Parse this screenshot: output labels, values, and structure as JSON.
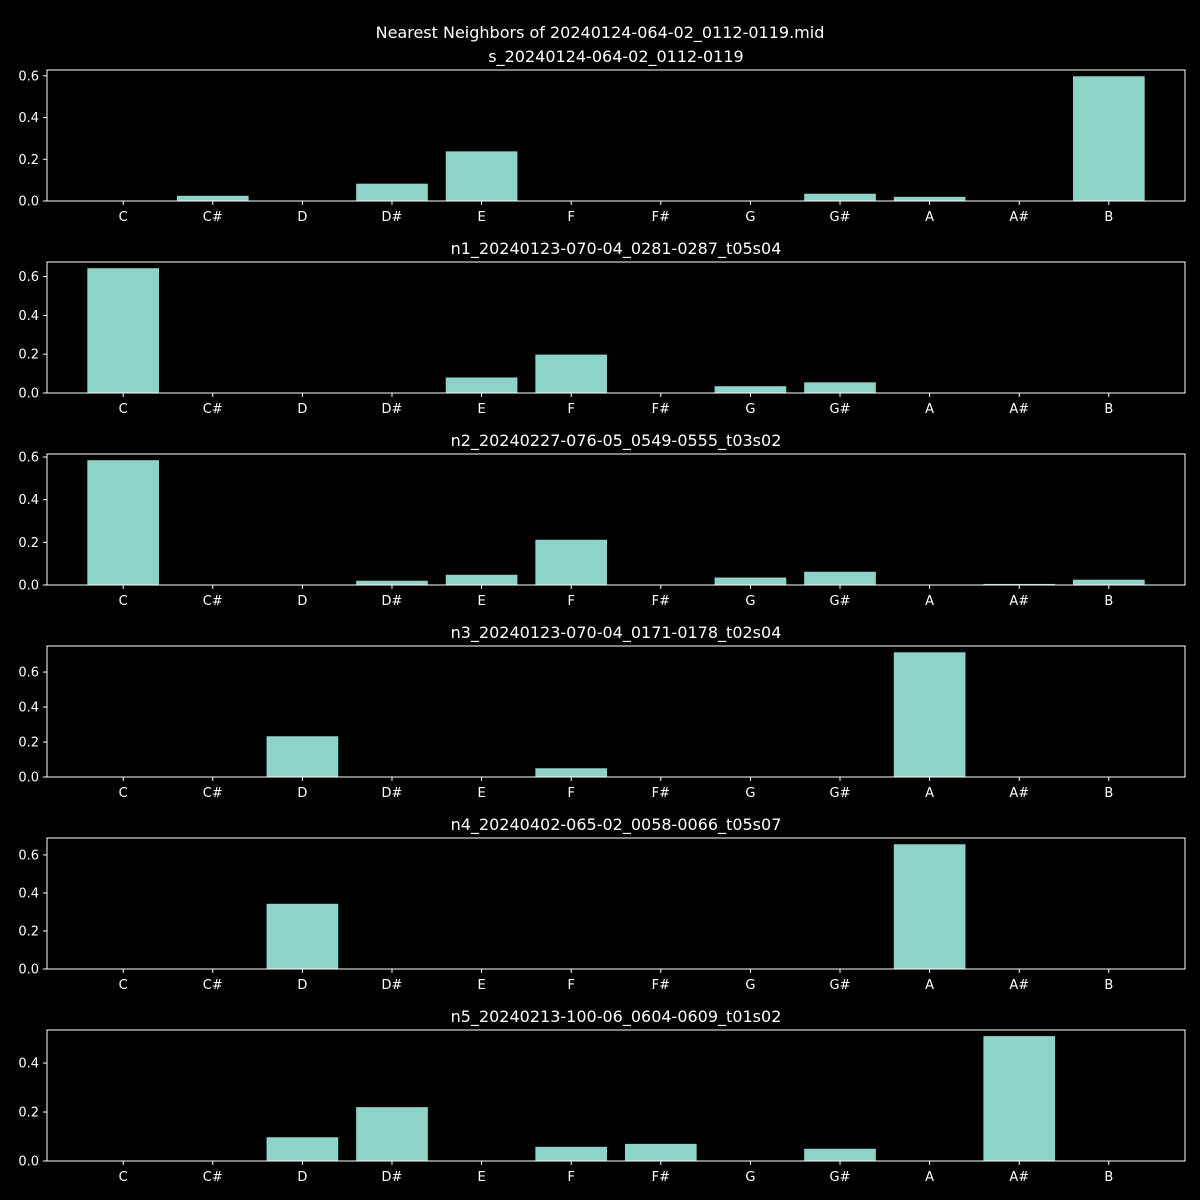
{
  "figure": {
    "suptitle": "Nearest Neighbors of 20240124-064-02_0112-0119.mid",
    "background": "#000000",
    "bar_color": "#8dd3c7",
    "text_color": "#ffffff"
  },
  "chart_data": [
    {
      "type": "bar",
      "title": "s_20240124-064-02_0112-0119",
      "categories": [
        "C",
        "C#",
        "D",
        "D#",
        "E",
        "F",
        "F#",
        "G",
        "G#",
        "A",
        "A#",
        "B"
      ],
      "values": [
        0,
        0.025,
        0,
        0.083,
        0.238,
        0,
        0,
        0,
        0.035,
        0.02,
        0,
        0.598
      ],
      "ylim": [
        0,
        0.628
      ],
      "yticks": [
        0.0,
        0.2,
        0.4,
        0.6
      ],
      "ytick_labels": [
        "0.0",
        "0.2",
        "0.4",
        "0.6"
      ]
    },
    {
      "type": "bar",
      "title": "n1_20240123-070-04_0281-0287_t05s04",
      "categories": [
        "C",
        "C#",
        "D",
        "D#",
        "E",
        "F",
        "F#",
        "G",
        "G#",
        "A",
        "A#",
        "B"
      ],
      "values": [
        0.643,
        0,
        0,
        0,
        0.08,
        0.198,
        0,
        0.035,
        0.055,
        0,
        0,
        0
      ],
      "ylim": [
        0,
        0.675
      ],
      "yticks": [
        0.0,
        0.2,
        0.4,
        0.6
      ],
      "ytick_labels": [
        "0.0",
        "0.2",
        "0.4",
        "0.6"
      ]
    },
    {
      "type": "bar",
      "title": "n2_20240227-076-05_0549-0555_t03s02",
      "categories": [
        "C",
        "C#",
        "D",
        "D#",
        "E",
        "F",
        "F#",
        "G",
        "G#",
        "A",
        "A#",
        "B"
      ],
      "values": [
        0.585,
        0,
        0,
        0.02,
        0.048,
        0.212,
        0,
        0.035,
        0.062,
        0,
        0.005,
        0.025
      ],
      "ylim": [
        0,
        0.614
      ],
      "yticks": [
        0.0,
        0.2,
        0.4,
        0.6
      ],
      "ytick_labels": [
        "0.0",
        "0.2",
        "0.4",
        "0.6"
      ]
    },
    {
      "type": "bar",
      "title": "n3_20240123-070-04_0171-0178_t02s04",
      "categories": [
        "C",
        "C#",
        "D",
        "D#",
        "E",
        "F",
        "F#",
        "G",
        "G#",
        "A",
        "A#",
        "B"
      ],
      "values": [
        0,
        0,
        0.233,
        0,
        0,
        0.05,
        0,
        0,
        0,
        0.713,
        0,
        0
      ],
      "ylim": [
        0,
        0.749
      ],
      "yticks": [
        0.0,
        0.2,
        0.4,
        0.6
      ],
      "ytick_labels": [
        "0.0",
        "0.2",
        "0.4",
        "0.6"
      ]
    },
    {
      "type": "bar",
      "title": "n4_20240402-065-02_0058-0066_t05s07",
      "categories": [
        "C",
        "C#",
        "D",
        "D#",
        "E",
        "F",
        "F#",
        "G",
        "G#",
        "A",
        "A#",
        "B"
      ],
      "values": [
        0,
        0,
        0.343,
        0,
        0,
        0,
        0,
        0,
        0,
        0.656,
        0,
        0
      ],
      "ylim": [
        0,
        0.689
      ],
      "yticks": [
        0.0,
        0.2,
        0.4,
        0.6
      ],
      "ytick_labels": [
        "0.0",
        "0.2",
        "0.4",
        "0.6"
      ]
    },
    {
      "type": "bar",
      "title": "n5_20240213-100-06_0604-0609_t01s02",
      "categories": [
        "C",
        "C#",
        "D",
        "D#",
        "E",
        "F",
        "F#",
        "G",
        "G#",
        "A",
        "A#",
        "B"
      ],
      "values": [
        0,
        0,
        0.097,
        0.22,
        0,
        0.058,
        0.07,
        0,
        0.05,
        0,
        0.51,
        0
      ],
      "ylim": [
        0,
        0.535
      ],
      "yticks": [
        0.0,
        0.2,
        0.4
      ],
      "ytick_labels": [
        "0.0",
        "0.2",
        "0.4"
      ]
    }
  ]
}
